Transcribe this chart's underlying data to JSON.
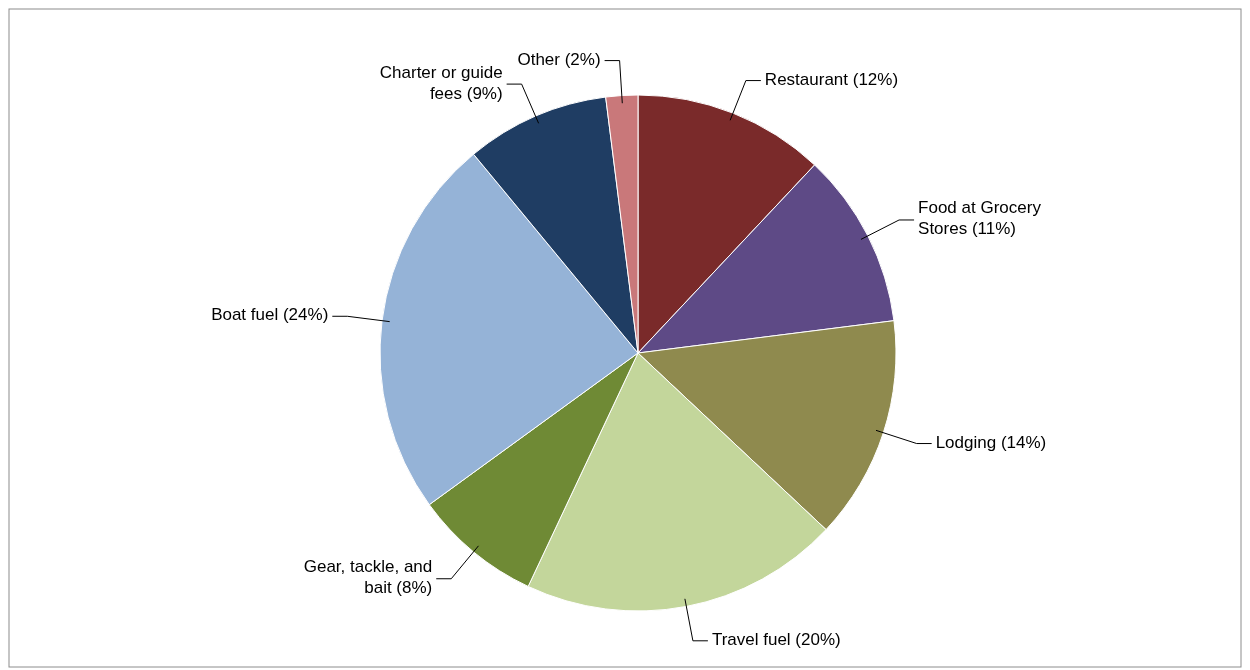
{
  "chart_data": {
    "type": "pie",
    "categories": [
      "Restaurant (12%)",
      "Food at Grocery Stores (11%)",
      "Lodging (14%)",
      "Travel fuel (20%)",
      "Gear, tackle, and bait (8%)",
      "Boat fuel (24%)",
      "Charter or guide fees (9%)",
      "Other (2%)"
    ],
    "values": [
      12,
      11,
      14,
      20,
      8,
      24,
      9,
      2
    ],
    "colors": [
      "#7a2a2a",
      "#5e4a86",
      "#8f8a4e",
      "#c3d69b",
      "#6f8a35",
      "#95b3d7",
      "#1f3d63",
      "#c9787a"
    ]
  }
}
